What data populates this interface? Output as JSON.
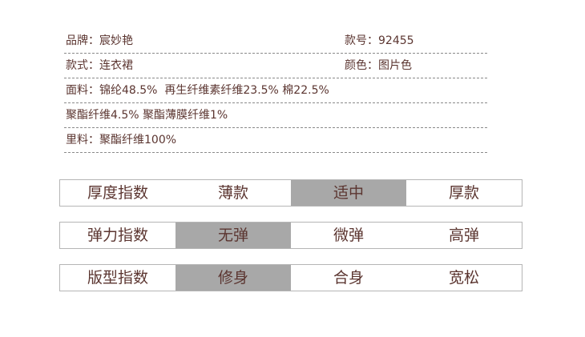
{
  "info": {
    "rows": [
      {
        "left": "品牌：宸妙艳",
        "right": "款号：92455"
      },
      {
        "left": "款式：连衣裙",
        "right": "颜色：图片色"
      },
      {
        "left": "面料：锦纶48.5%  再生纤维素纤维23.5% 棉22.5%",
        "right": ""
      },
      {
        "left": "聚酯纤维4.5% 聚酯薄膜纤维1%",
        "right": ""
      },
      {
        "left": "里料：聚酯纤维100%",
        "right": ""
      }
    ]
  },
  "indices": [
    {
      "label": "厚度指数",
      "options": [
        "薄款",
        "适中",
        "厚款"
      ],
      "selected": "适中"
    },
    {
      "label": "弹力指数",
      "options": [
        "无弹",
        "微弹",
        "高弹"
      ],
      "selected": "无弹"
    },
    {
      "label": "版型指数",
      "options": [
        "修身",
        "合身",
        "宽松"
      ],
      "selected": "修身"
    }
  ],
  "colors": {
    "text": "#5b3530",
    "highlight": "#a8a8a8",
    "border": "#b5b5b5"
  }
}
